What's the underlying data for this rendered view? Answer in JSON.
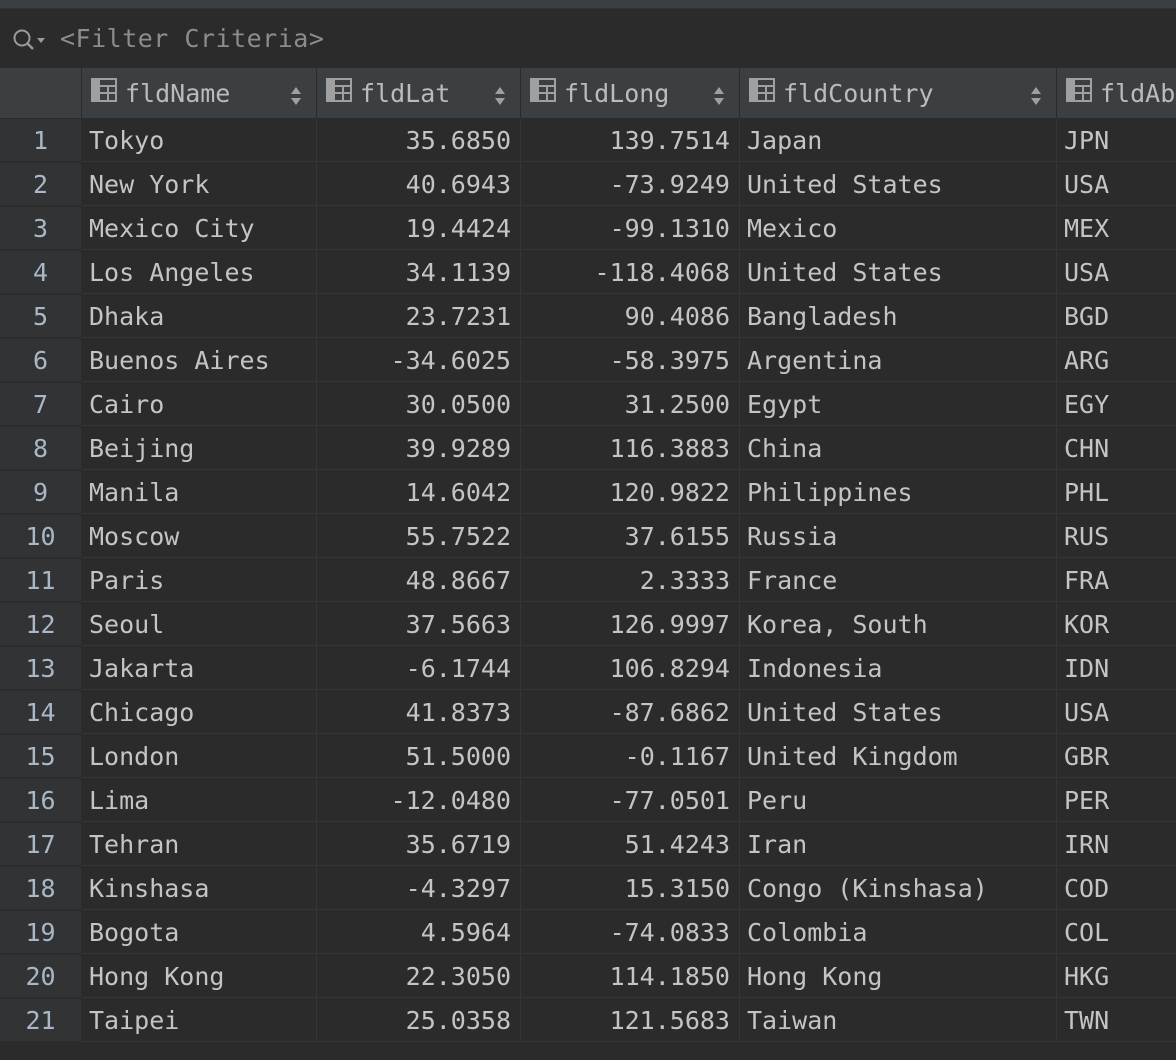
{
  "filter": {
    "placeholder": "<Filter Criteria>"
  },
  "columns": [
    {
      "label": "fldName"
    },
    {
      "label": "fldLat"
    },
    {
      "label": "fldLong"
    },
    {
      "label": "fldCountry"
    },
    {
      "label": "fldAb"
    }
  ],
  "rows": [
    {
      "n": "1",
      "name": "Tokyo",
      "lat": "35.6850",
      "long": "139.7514",
      "country": "Japan",
      "ab": "JPN"
    },
    {
      "n": "2",
      "name": "New York",
      "lat": "40.6943",
      "long": "-73.9249",
      "country": "United States",
      "ab": "USA"
    },
    {
      "n": "3",
      "name": "Mexico City",
      "lat": "19.4424",
      "long": "-99.1310",
      "country": "Mexico",
      "ab": "MEX"
    },
    {
      "n": "4",
      "name": "Los Angeles",
      "lat": "34.1139",
      "long": "-118.4068",
      "country": "United States",
      "ab": "USA"
    },
    {
      "n": "5",
      "name": "Dhaka",
      "lat": "23.7231",
      "long": "90.4086",
      "country": "Bangladesh",
      "ab": "BGD"
    },
    {
      "n": "6",
      "name": "Buenos Aires",
      "lat": "-34.6025",
      "long": "-58.3975",
      "country": "Argentina",
      "ab": "ARG"
    },
    {
      "n": "7",
      "name": "Cairo",
      "lat": "30.0500",
      "long": "31.2500",
      "country": "Egypt",
      "ab": "EGY"
    },
    {
      "n": "8",
      "name": "Beijing",
      "lat": "39.9289",
      "long": "116.3883",
      "country": "China",
      "ab": "CHN"
    },
    {
      "n": "9",
      "name": "Manila",
      "lat": "14.6042",
      "long": "120.9822",
      "country": "Philippines",
      "ab": "PHL"
    },
    {
      "n": "10",
      "name": "Moscow",
      "lat": "55.7522",
      "long": "37.6155",
      "country": "Russia",
      "ab": "RUS"
    },
    {
      "n": "11",
      "name": "Paris",
      "lat": "48.8667",
      "long": "2.3333",
      "country": "France",
      "ab": "FRA"
    },
    {
      "n": "12",
      "name": "Seoul",
      "lat": "37.5663",
      "long": "126.9997",
      "country": "Korea, South",
      "ab": "KOR"
    },
    {
      "n": "13",
      "name": "Jakarta",
      "lat": "-6.1744",
      "long": "106.8294",
      "country": "Indonesia",
      "ab": "IDN"
    },
    {
      "n": "14",
      "name": "Chicago",
      "lat": "41.8373",
      "long": "-87.6862",
      "country": "United States",
      "ab": "USA"
    },
    {
      "n": "15",
      "name": "London",
      "lat": "51.5000",
      "long": "-0.1167",
      "country": "United Kingdom",
      "ab": "GBR"
    },
    {
      "n": "16",
      "name": "Lima",
      "lat": "-12.0480",
      "long": "-77.0501",
      "country": "Peru",
      "ab": "PER"
    },
    {
      "n": "17",
      "name": "Tehran",
      "lat": "35.6719",
      "long": "51.4243",
      "country": "Iran",
      "ab": "IRN"
    },
    {
      "n": "18",
      "name": "Kinshasa",
      "lat": "-4.3297",
      "long": "15.3150",
      "country": "Congo (Kinshasa)",
      "ab": "COD"
    },
    {
      "n": "19",
      "name": "Bogota",
      "lat": "4.5964",
      "long": "-74.0833",
      "country": "Colombia",
      "ab": "COL"
    },
    {
      "n": "20",
      "name": "Hong Kong",
      "lat": "22.3050",
      "long": "114.1850",
      "country": "Hong Kong",
      "ab": "HKG"
    },
    {
      "n": "21",
      "name": "Taipei",
      "lat": "25.0358",
      "long": "121.5683",
      "country": "Taiwan",
      "ab": "TWN"
    }
  ]
}
